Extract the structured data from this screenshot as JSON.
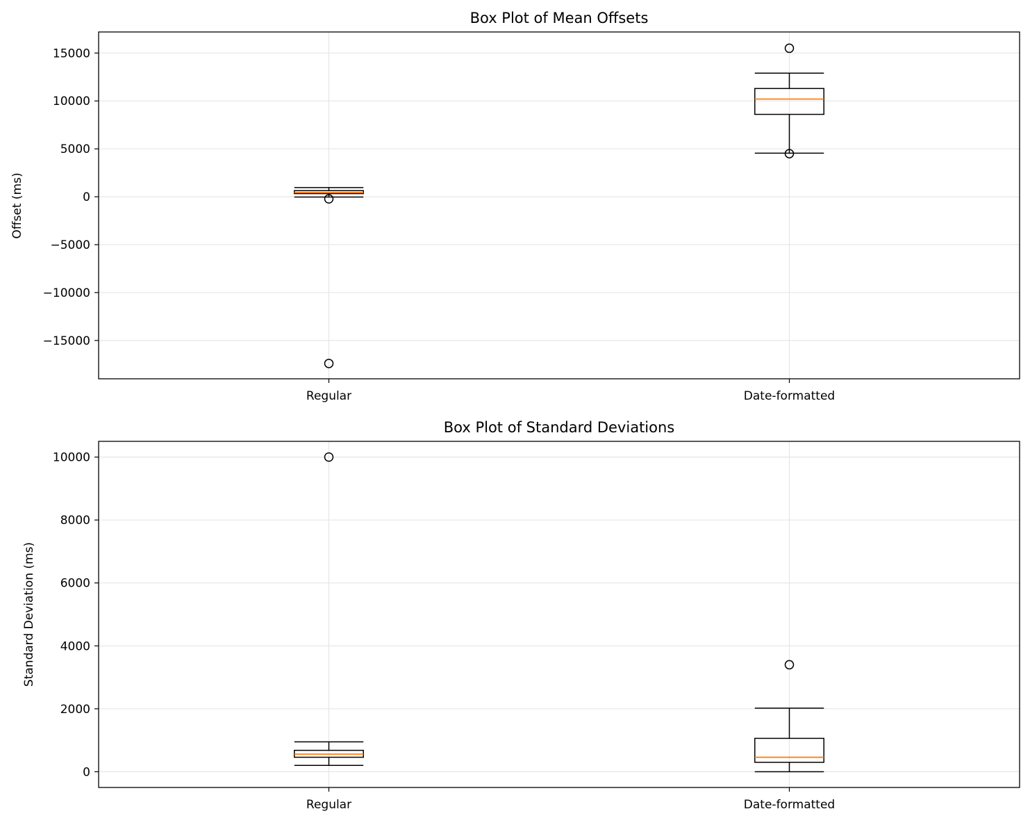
{
  "chart_data": [
    {
      "type": "box",
      "title": "Box Plot of Mean Offsets",
      "xlabel": "",
      "ylabel": "Offset (ms)",
      "categories": [
        "Regular",
        "Date-formatted"
      ],
      "ylim": [
        -19000,
        17200
      ],
      "yticks": [
        15000,
        10000,
        5000,
        0,
        -5000,
        -10000,
        -15000
      ],
      "ytick_labels": [
        "15000",
        "10000",
        "5000",
        "0",
        "−5000",
        "−10000",
        "−15000"
      ],
      "grid": true,
      "boxes": [
        {
          "category": "Regular",
          "whisker_low": -30,
          "q1": 330,
          "median": 450,
          "q3": 640,
          "whisker_high": 960,
          "outliers": [
            -220,
            -17400
          ]
        },
        {
          "category": "Date-formatted",
          "whisker_low": 4550,
          "q1": 8600,
          "median": 10200,
          "q3": 11300,
          "whisker_high": 12900,
          "outliers": [
            4500,
            15500
          ]
        }
      ]
    },
    {
      "type": "box",
      "title": "Box Plot of Standard Deviations",
      "xlabel": "",
      "ylabel": "Standard Deviation (ms)",
      "categories": [
        "Regular",
        "Date-formatted"
      ],
      "ylim": [
        -500,
        10500
      ],
      "yticks": [
        10000,
        8000,
        6000,
        4000,
        2000,
        0
      ],
      "ytick_labels": [
        "10000",
        "8000",
        "6000",
        "4000",
        "2000",
        "0"
      ],
      "grid": true,
      "boxes": [
        {
          "category": "Regular",
          "whisker_low": 200,
          "q1": 460,
          "median": 560,
          "q3": 680,
          "whisker_high": 950,
          "outliers": [
            10000
          ]
        },
        {
          "category": "Date-formatted",
          "whisker_low": 0,
          "q1": 300,
          "median": 460,
          "q3": 1060,
          "whisker_high": 2020,
          "outliers": [
            3400
          ]
        }
      ]
    }
  ],
  "colors": {
    "box": "#000000",
    "median": "#ff7f0e",
    "grid": "#e6e6e6",
    "axes": "#000000"
  }
}
